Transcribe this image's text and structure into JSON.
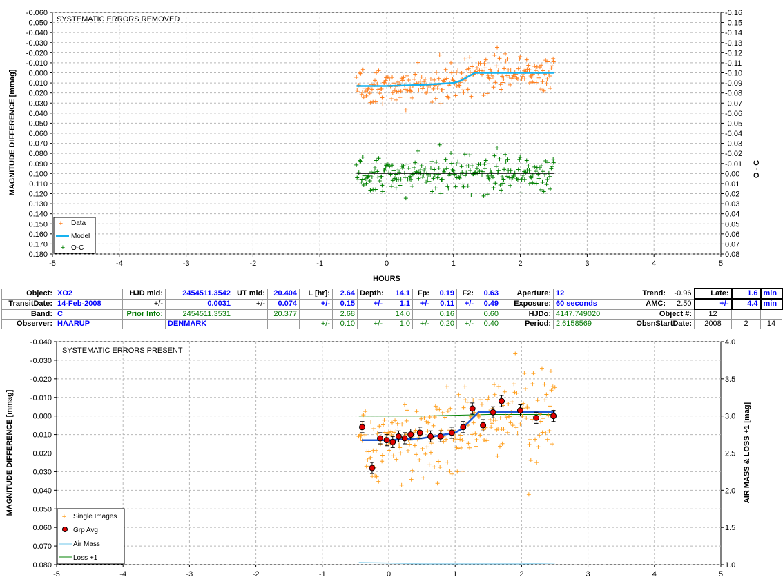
{
  "top_panel": {
    "title": "SYSTEMATIC ERRORS REMOVED",
    "ylabel": "MAGNITUDE DIFFERENCE [mmag]",
    "y2label": "O - C",
    "xlabel": "HOURS",
    "legend": [
      "Data",
      "Model",
      "O-C"
    ]
  },
  "bottom_panel": {
    "title": "SYSTEMATIC ERRORS PRESENT",
    "ylabel": "MAGNITUDE DIFFERENCE [mmag]",
    "y2label": "AIR MASS & LOSS +1 [mag]",
    "legend": [
      "Single Images",
      "Grp Avg",
      "Air Mass",
      "Loss +1"
    ]
  },
  "info_table": {
    "r1": [
      "Object:",
      "XO2",
      "HJD mid:",
      "2454511.3542",
      "UT mid:",
      "20.404",
      "L [hr]:",
      "2.64",
      "Depth:",
      "14.1",
      "Fp:",
      "0.19",
      "F2:",
      "0.63",
      "Aperture:",
      "12",
      "Trend:",
      "-0.96",
      "Late:",
      "1.6",
      "min"
    ],
    "r2": [
      "TransitDate:",
      "14-Feb-2008",
      "+/-",
      "0.0031",
      "+/-",
      "0.074",
      "+/-",
      "0.15",
      "+/-",
      "1.1",
      "+/-",
      "0.11",
      "+/-",
      "0.49",
      "Exposure:",
      "60 seconds",
      "AMC:",
      "2.50",
      "+/-",
      "4.4",
      "min"
    ],
    "r3": [
      "Band:",
      "C",
      "Prior Info:",
      "2454511.3531",
      "20.377",
      "2.68",
      "14.0",
      "0.16",
      "0.60",
      "HJDo:",
      "4147.749020",
      "Object #:",
      "12"
    ],
    "r4": [
      "Observer:",
      "HAARUP",
      "DENMARK",
      "+/-",
      "0.10",
      "+/-",
      "1.0",
      "+/-",
      "0.20",
      "+/-",
      "0.40",
      "Period:",
      "2.6158569",
      "ObsnStartDate:",
      "2008",
      "2",
      "14"
    ]
  },
  "colors": {
    "data_orange": "#ff7f1e",
    "model_cyan": "#17b2ef",
    "oc_green": "#008000",
    "single_images": "#ffa020",
    "grp_avg": "#e00000",
    "bottom_model": "#1f5bd6",
    "air_mass": "#9ed8f0",
    "loss": "#008000",
    "grid": "#b8b8b8",
    "label_blue": "#0000ff",
    "label_green": "#007700"
  },
  "chart_data": [
    {
      "type": "scatter",
      "title": "SYSTEMATIC ERRORS REMOVED",
      "xlabel": "HOURS",
      "ylabel": "MAGNITUDE DIFFERENCE [mmag]",
      "y2label": "O - C",
      "xlim": [
        -5,
        5
      ],
      "ylim": [
        0.18,
        -0.06
      ],
      "y2lim": [
        0.08,
        -0.16
      ],
      "x_ticks": [
        -5,
        -4,
        -3,
        -2,
        -1,
        0,
        1,
        2,
        3,
        4,
        5
      ],
      "y_ticks": [
        -0.06,
        -0.05,
        -0.04,
        -0.03,
        -0.02,
        -0.01,
        0.0,
        0.01,
        0.02,
        0.03,
        0.04,
        0.05,
        0.06,
        0.07,
        0.08,
        0.09,
        0.1,
        0.11,
        0.12,
        0.13,
        0.14,
        0.15,
        0.16,
        0.17,
        0.18
      ],
      "y2_ticks": [
        -0.16,
        -0.15,
        -0.14,
        -0.13,
        -0.12,
        -0.11,
        -0.1,
        -0.09,
        -0.08,
        -0.07,
        -0.06,
        -0.05,
        -0.04,
        -0.03,
        -0.02,
        -0.01,
        0.0,
        0.01,
        0.02,
        0.03,
        0.04,
        0.05,
        0.06,
        0.07,
        0.08
      ],
      "legend_position": "bottom-left",
      "grid": true,
      "series": [
        {
          "name": "Data",
          "kind": "scatter",
          "x_range": [
            -0.45,
            2.5
          ],
          "center": "model",
          "spread": 0.012,
          "count": 240
        },
        {
          "name": "Model",
          "kind": "line",
          "points": [
            [
              -0.45,
              0.013
            ],
            [
              0.0,
              0.013
            ],
            [
              0.5,
              0.012
            ],
            [
              1.0,
              0.01
            ],
            [
              1.1,
              0.008
            ],
            [
              1.32,
              0.0
            ],
            [
              2.5,
              0.0
            ]
          ]
        },
        {
          "name": "O-C",
          "kind": "scatter",
          "x_range": [
            -0.45,
            2.5
          ],
          "center": 0.0,
          "spread": 0.012,
          "count": 240,
          "axis": "y2"
        }
      ]
    },
    {
      "type": "scatter",
      "title": "SYSTEMATIC ERRORS PRESENT",
      "ylabel": "MAGNITUDE DIFFERENCE [mmag]",
      "y2label": "AIR MASS & LOSS +1 [mag]",
      "xlim": [
        -5,
        5
      ],
      "ylim": [
        0.08,
        -0.04
      ],
      "y2lim": [
        1.0,
        4.0
      ],
      "x_ticks": [
        -5,
        -4,
        -3,
        -2,
        -1,
        0,
        1,
        2,
        3,
        4,
        5
      ],
      "y_ticks": [
        -0.04,
        -0.03,
        -0.02,
        -0.01,
        0.0,
        0.01,
        0.02,
        0.03,
        0.04,
        0.05,
        0.06,
        0.07,
        0.08
      ],
      "y2_ticks": [
        1.0,
        1.5,
        2.0,
        2.5,
        3.0,
        3.5,
        4.0
      ],
      "legend_position": "bottom-left",
      "grid": true,
      "series": [
        {
          "name": "Single Images",
          "kind": "scatter",
          "x_range": [
            -0.45,
            2.5
          ],
          "center": "model",
          "spread": 0.013,
          "count": 240
        },
        {
          "name": "Grp Avg",
          "kind": "errorbar",
          "points": [
            [
              -0.4,
              0.006
            ],
            [
              -0.25,
              0.028
            ],
            [
              -0.13,
              0.012
            ],
            [
              -0.03,
              0.013
            ],
            [
              0.06,
              0.014
            ],
            [
              0.15,
              0.011
            ],
            [
              0.24,
              0.012
            ],
            [
              0.33,
              0.01
            ],
            [
              0.47,
              0.009
            ],
            [
              0.63,
              0.011
            ],
            [
              0.78,
              0.011
            ],
            [
              0.95,
              0.009
            ],
            [
              1.12,
              0.006
            ],
            [
              1.26,
              -0.004
            ],
            [
              1.42,
              0.005
            ],
            [
              1.57,
              -0.002
            ],
            [
              1.7,
              -0.008
            ],
            [
              1.98,
              -0.003
            ],
            [
              2.22,
              0.001
            ],
            [
              2.48,
              0.0
            ]
          ],
          "error": 0.003
        },
        {
          "name": "Model",
          "kind": "line",
          "points": [
            [
              -0.4,
              0.013
            ],
            [
              0.0,
              0.013
            ],
            [
              0.5,
              0.012
            ],
            [
              1.0,
              0.009
            ],
            [
              1.1,
              0.007
            ],
            [
              1.35,
              -0.002
            ],
            [
              2.5,
              -0.002
            ]
          ]
        },
        {
          "name": "Air Mass",
          "kind": "line",
          "axis": "y2",
          "points": [
            [
              -0.45,
              1.03
            ],
            [
              0.0,
              1.02
            ],
            [
              0.5,
              1.01
            ],
            [
              1.0,
              1.01
            ],
            [
              1.5,
              1.01
            ],
            [
              2.0,
              1.01
            ],
            [
              2.5,
              1.02
            ]
          ]
        },
        {
          "name": "Loss +1",
          "kind": "line",
          "axis": "y2",
          "points": [
            [
              -0.45,
              3.0
            ],
            [
              0.5,
              3.0
            ],
            [
              1.0,
              3.01
            ],
            [
              1.5,
              3.02
            ],
            [
              2.0,
              3.02
            ],
            [
              2.5,
              3.02
            ]
          ]
        }
      ]
    }
  ]
}
